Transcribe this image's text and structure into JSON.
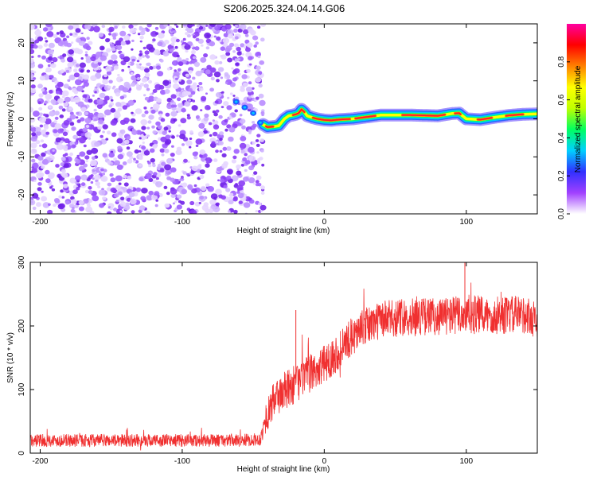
{
  "chart_data": [
    {
      "type": "heatmap",
      "title": "S206.2025.324.04.14.G06",
      "xlabel": "Height of straight line (km)",
      "ylabel": "Frequency (Hz)",
      "xlim": [
        -207,
        150
      ],
      "ylim": [
        -25,
        25
      ],
      "xticks": [
        -200,
        -100,
        0,
        100
      ],
      "yticks": [
        -20,
        -10,
        0,
        10,
        20
      ],
      "noise_region_x": [
        -207,
        -43
      ],
      "signal_track": {
        "x": [
          -43,
          -40,
          -35,
          -32,
          -28,
          -25,
          -22,
          -20,
          -18,
          -16,
          -14,
          -12,
          -8,
          -5,
          0,
          5,
          10,
          20,
          30,
          40,
          60,
          80,
          90,
          95,
          100,
          110,
          120,
          130,
          140,
          150
        ],
        "freq": [
          -1.5,
          -2.2,
          -2.0,
          -1.8,
          0.0,
          0.8,
          1.0,
          1.2,
          1.5,
          2.5,
          1.8,
          0.8,
          0.3,
          0.0,
          -0.3,
          -0.4,
          -0.2,
          0.0,
          0.5,
          1.0,
          1.0,
          0.8,
          1.4,
          1.5,
          0.0,
          -0.2,
          0.4,
          0.9,
          1.2,
          1.3
        ]
      },
      "colorbar": {
        "label": "Normalized spectral amplitude",
        "range": [
          0.0,
          1.0
        ],
        "ticks": [
          0.0,
          0.2,
          0.4,
          0.6,
          0.8
        ],
        "tick_labels": [
          "0.0",
          "0.2",
          "0.4",
          "0.6",
          "0.8"
        ],
        "colors": [
          "#ffffff",
          "#a040ff",
          "#3030ff",
          "#00d0ff",
          "#00ff60",
          "#c0ff00",
          "#ffff00",
          "#ff8000",
          "#ff0000",
          "#ff00a0"
        ]
      }
    },
    {
      "type": "line",
      "xlabel": "Height of straight line (km)",
      "ylabel": "SNR (10 * v/v)",
      "xlim": [
        -207,
        150
      ],
      "ylim": [
        0,
        300
      ],
      "xticks": [
        -200,
        -100,
        0,
        100
      ],
      "yticks": [
        0,
        100,
        200,
        300
      ],
      "color": "#f03030",
      "series": [
        {
          "name": "SNR",
          "x": [
            -207,
            -180,
            -150,
            -120,
            -90,
            -60,
            -45,
            -40,
            -35,
            -30,
            -25,
            -20,
            -15,
            -10,
            -5,
            0,
            10,
            20,
            30,
            40,
            50,
            60,
            80,
            100,
            120,
            140,
            150
          ],
          "mean": [
            20,
            20,
            20,
            20,
            20,
            20,
            22,
            60,
            85,
            95,
            100,
            110,
            118,
            125,
            132,
            140,
            160,
            185,
            200,
            210,
            212,
            215,
            215,
            218,
            216,
            218,
            210
          ],
          "noise": [
            10,
            10,
            10,
            10,
            10,
            10,
            10,
            25,
            30,
            32,
            32,
            30,
            30,
            30,
            30,
            30,
            30,
            30,
            30,
            30,
            30,
            30,
            30,
            32,
            30,
            30,
            30
          ]
        }
      ],
      "annotations": [
        {
          "x": -20,
          "value": 225
        },
        {
          "x": 99,
          "value": 300
        }
      ]
    }
  ]
}
